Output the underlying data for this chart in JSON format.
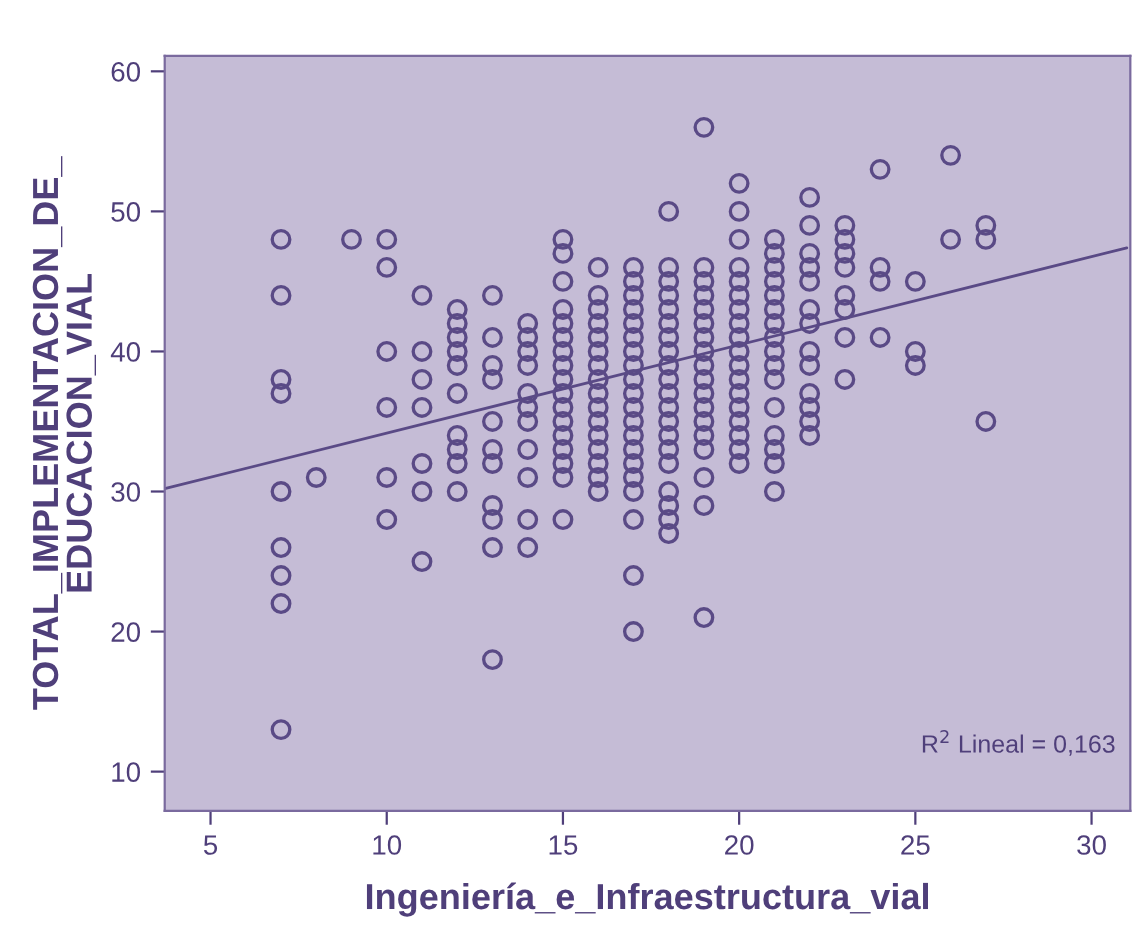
{
  "chart_data": {
    "type": "scatter",
    "xlabel": "Ingeniería_e_Infraestructura_vial",
    "ylabel": "TOTAL_IMPLEMENTACION_DE_\nEDUCACION_VIAL",
    "series": [
      {
        "color": "#5a4a86",
        "marker": "circle",
        "x": [
          7,
          7,
          7,
          7,
          7,
          7,
          7,
          7,
          7,
          8,
          9,
          10,
          10,
          10,
          10,
          10,
          10,
          11,
          11,
          11,
          11,
          11,
          11,
          11,
          12,
          12,
          12,
          12,
          12,
          12,
          12,
          12,
          12,
          12,
          13,
          13,
          13,
          13,
          13,
          13,
          13,
          13,
          13,
          13,
          13,
          14,
          14,
          14,
          14,
          14,
          14,
          14,
          14,
          14,
          14,
          14,
          15,
          15,
          15,
          15,
          15,
          15,
          15,
          15,
          15,
          15,
          15,
          15,
          15,
          15,
          15,
          15,
          15,
          16,
          16,
          16,
          16,
          16,
          16,
          16,
          16,
          16,
          16,
          16,
          16,
          16,
          16,
          16,
          16,
          17,
          17,
          17,
          17,
          17,
          17,
          17,
          17,
          17,
          17,
          17,
          17,
          17,
          17,
          17,
          17,
          17,
          17,
          17,
          17,
          18,
          18,
          18,
          18,
          18,
          18,
          18,
          18,
          18,
          18,
          18,
          18,
          18,
          18,
          18,
          18,
          18,
          18,
          18,
          18,
          19,
          19,
          19,
          19,
          19,
          19,
          19,
          19,
          19,
          19,
          19,
          19,
          19,
          19,
          19,
          19,
          19,
          19,
          20,
          20,
          20,
          20,
          20,
          20,
          20,
          20,
          20,
          20,
          20,
          20,
          20,
          20,
          20,
          20,
          20,
          20,
          21,
          21,
          21,
          21,
          21,
          21,
          21,
          21,
          21,
          21,
          21,
          21,
          21,
          21,
          21,
          21,
          22,
          22,
          22,
          22,
          22,
          22,
          22,
          22,
          22,
          22,
          22,
          22,
          22,
          23,
          23,
          23,
          23,
          23,
          23,
          23,
          23,
          24,
          24,
          24,
          24,
          25,
          25,
          25,
          26,
          26,
          27,
          27,
          27
        ],
        "values": [
          48,
          44,
          38,
          37,
          30,
          26,
          24,
          22,
          13,
          31,
          48,
          48,
          46,
          40,
          36,
          31,
          28,
          44,
          40,
          38,
          36,
          32,
          30,
          25,
          43,
          42,
          41,
          40,
          39,
          37,
          34,
          33,
          32,
          30,
          44,
          41,
          39,
          38,
          35,
          33,
          32,
          29,
          28,
          26,
          18,
          42,
          41,
          40,
          39,
          37,
          36,
          35,
          33,
          31,
          28,
          26,
          48,
          47,
          45,
          43,
          42,
          41,
          40,
          39,
          38,
          37,
          36,
          35,
          34,
          33,
          32,
          31,
          28,
          46,
          44,
          43,
          42,
          41,
          40,
          39,
          38,
          37,
          36,
          35,
          34,
          33,
          32,
          31,
          30,
          46,
          45,
          44,
          43,
          42,
          41,
          40,
          39,
          38,
          37,
          36,
          35,
          34,
          33,
          32,
          31,
          30,
          28,
          24,
          20,
          50,
          46,
          45,
          44,
          43,
          42,
          41,
          40,
          39,
          38,
          37,
          36,
          35,
          34,
          33,
          32,
          30,
          29,
          28,
          27,
          56,
          46,
          45,
          44,
          43,
          42,
          41,
          40,
          39,
          38,
          37,
          36,
          35,
          34,
          33,
          31,
          29,
          21,
          52,
          50,
          48,
          46,
          45,
          44,
          43,
          42,
          41,
          40,
          39,
          38,
          37,
          36,
          35,
          34,
          33,
          32,
          48,
          47,
          46,
          45,
          44,
          43,
          42,
          41,
          40,
          39,
          38,
          36,
          34,
          33,
          32,
          30,
          51,
          49,
          47,
          46,
          45,
          43,
          42,
          40,
          39,
          37,
          36,
          35,
          34,
          49,
          48,
          47,
          46,
          44,
          43,
          41,
          38,
          53,
          46,
          45,
          41,
          45,
          40,
          39,
          54,
          48,
          49,
          48,
          35
        ]
      },
      {
        "type": "line",
        "color": "#5a4a86",
        "marker": "none",
        "x": [
          3.7,
          31.0
        ],
        "values": [
          30.2,
          47.4
        ]
      }
    ],
    "annotations": [
      {
        "text": "R$^{2}$ Lineal = 0,163"
      }
    ],
    "xlim": [
      3.7,
      31.1
    ],
    "ylim": [
      7.2,
      61.1
    ],
    "xticks": [
      5,
      10,
      15,
      20,
      25,
      30
    ],
    "yticks": [
      10,
      20,
      30,
      40,
      50,
      60
    ],
    "grid": false
  }
}
